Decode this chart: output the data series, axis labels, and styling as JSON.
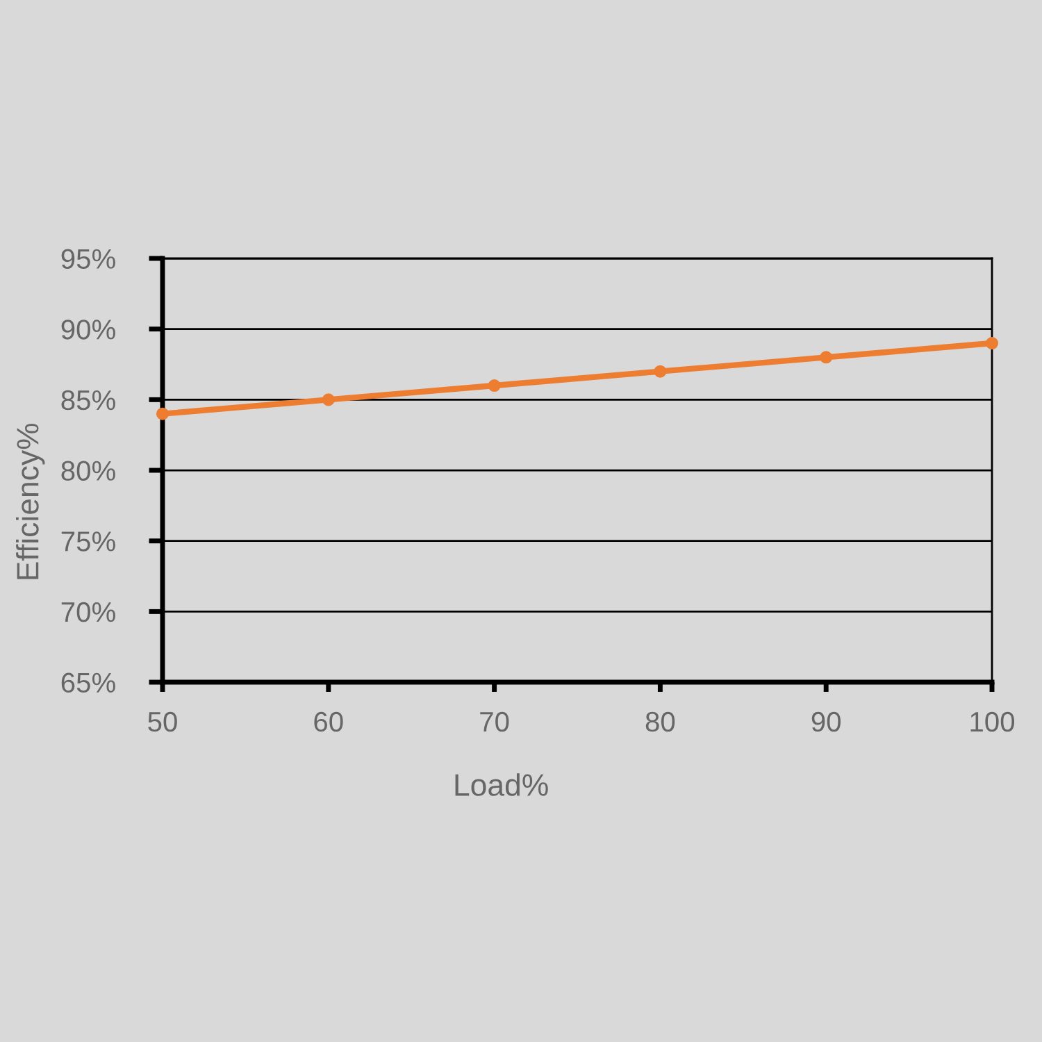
{
  "chart_data": {
    "type": "line",
    "xlabel": "Load%",
    "ylabel": "Efficiency%",
    "x": [
      50,
      60,
      70,
      80,
      90,
      100
    ],
    "series": [
      {
        "color": "#ed7d31",
        "values": [
          84,
          85,
          86,
          87,
          88,
          89
        ]
      }
    ],
    "xlim": [
      50,
      100
    ],
    "xticks": [
      50,
      60,
      70,
      80,
      90,
      100
    ],
    "ylim": [
      65,
      95
    ],
    "yticks": [
      {
        "value": 65,
        "label": "65%"
      },
      {
        "value": 70,
        "label": "70%"
      },
      {
        "value": 75,
        "label": "75%"
      },
      {
        "value": 80,
        "label": "80%"
      },
      {
        "value": 85,
        "label": "85%"
      },
      {
        "value": 90,
        "label": "90%"
      },
      {
        "value": 95,
        "label": "95%"
      }
    ],
    "grid": "y",
    "marker": "circle",
    "line_style": "solid"
  }
}
